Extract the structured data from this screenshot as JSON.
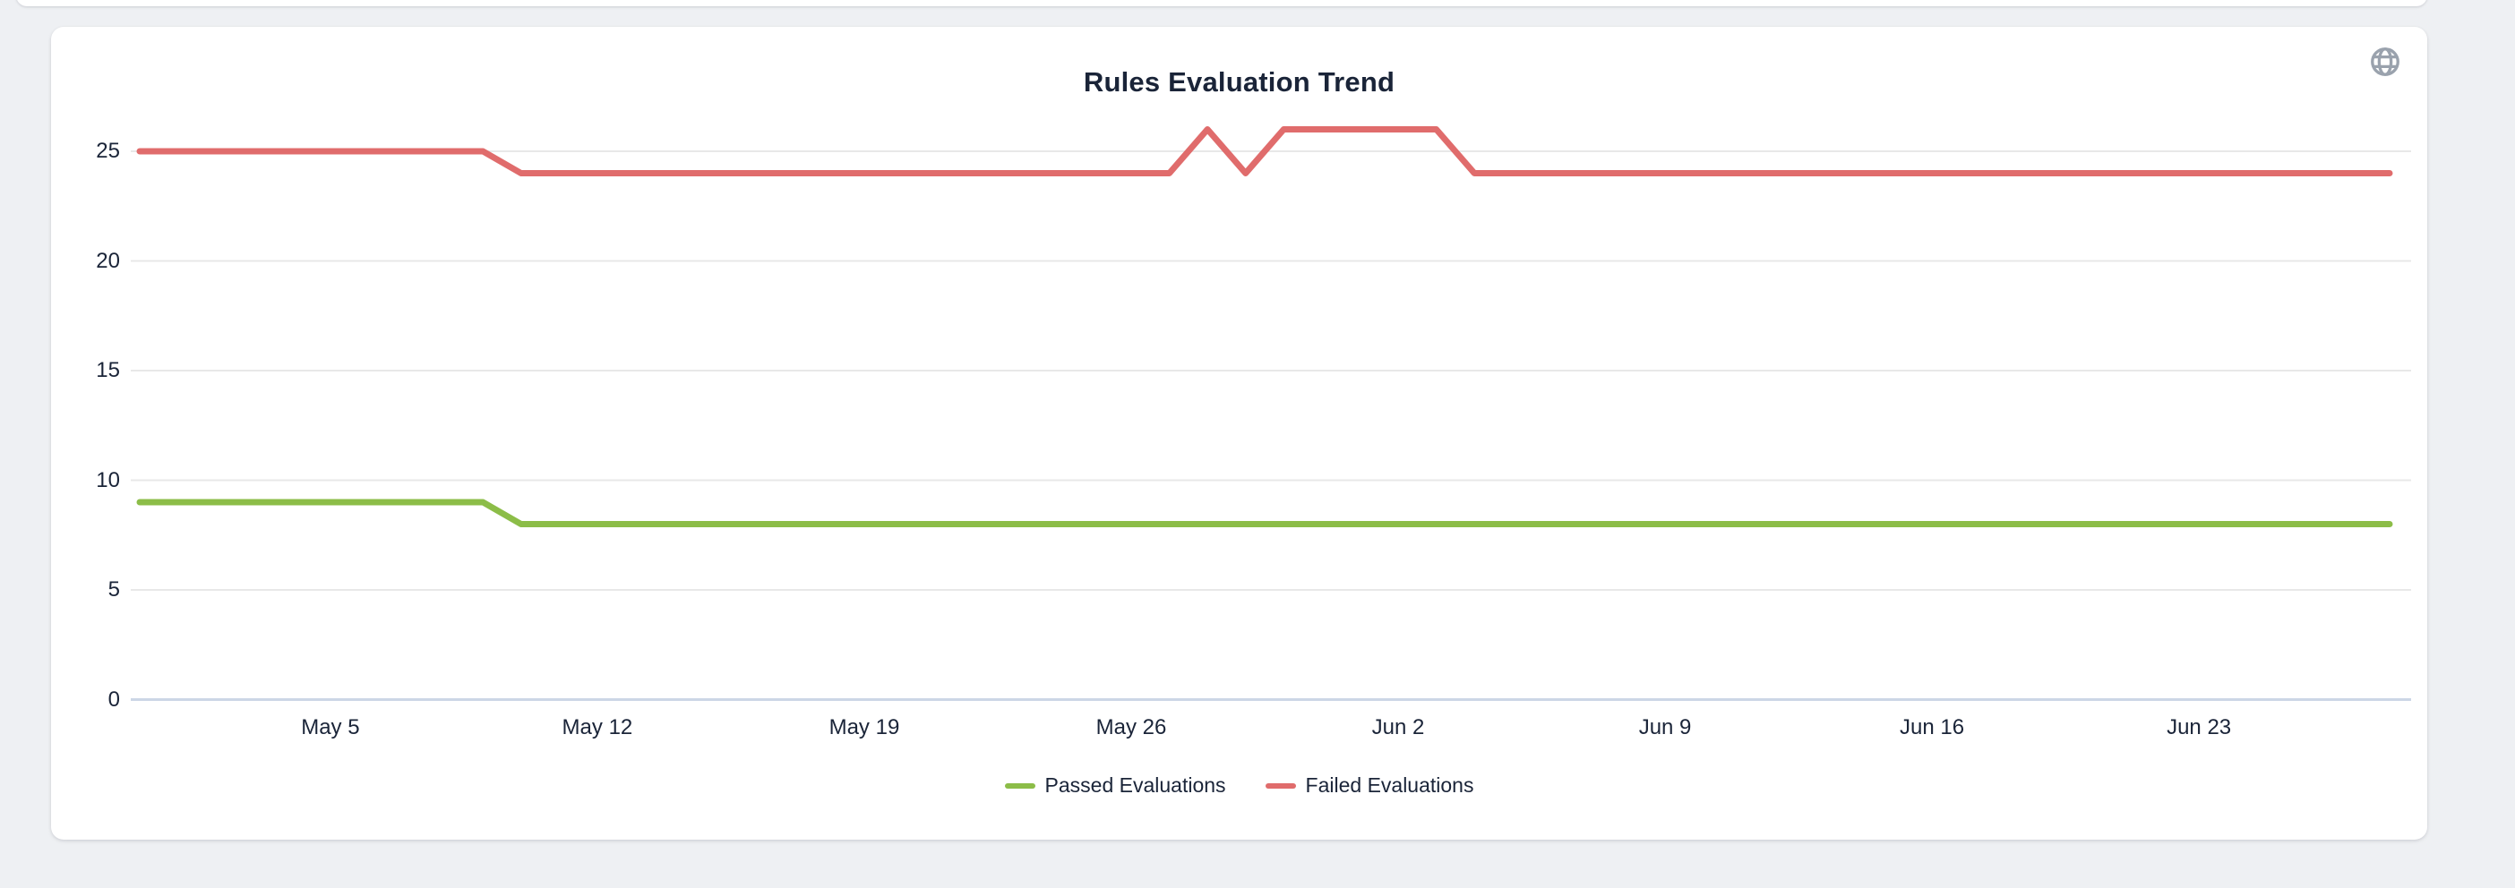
{
  "theme": {
    "page_background": "#eef0f3",
    "card_background": "#ffffff",
    "text_color": "#1a2438",
    "gridline_color": "#e8e8e8",
    "axis_line_color": "#ccd6e6",
    "globe_icon_color": "#9aa2ad"
  },
  "chart_card": {
    "title": "Rules Evaluation Trend",
    "toolbox_icon": "globe-icon"
  },
  "chart_data": {
    "type": "line",
    "title": "Rules Evaluation Trend",
    "xlabel": "",
    "ylabel": "",
    "grid": true,
    "legend_position": "bottom",
    "ylim": [
      0,
      27
    ],
    "yticks": [
      0,
      5,
      10,
      15,
      20,
      25
    ],
    "xticks": {
      "labels": [
        "May 5",
        "May 12",
        "May 19",
        "May 26",
        "Jun 2",
        "Jun 9",
        "Jun 16",
        "Jun 23"
      ],
      "indices": [
        5,
        12,
        19,
        26,
        33,
        40,
        47,
        54
      ]
    },
    "x": [
      "Apr 30",
      "May 1",
      "May 2",
      "May 3",
      "May 4",
      "May 5",
      "May 6",
      "May 7",
      "May 8",
      "May 9",
      "May 10",
      "May 11",
      "May 12",
      "May 13",
      "May 14",
      "May 15",
      "May 16",
      "May 17",
      "May 18",
      "May 19",
      "May 20",
      "May 21",
      "May 22",
      "May 23",
      "May 24",
      "May 25",
      "May 26",
      "May 27",
      "May 28",
      "May 29",
      "May 30",
      "May 31",
      "Jun 1",
      "Jun 2",
      "Jun 3",
      "Jun 4",
      "Jun 5",
      "Jun 6",
      "Jun 7",
      "Jun 8",
      "Jun 9",
      "Jun 10",
      "Jun 11",
      "Jun 12",
      "Jun 13",
      "Jun 14",
      "Jun 15",
      "Jun 16",
      "Jun 17",
      "Jun 18",
      "Jun 19",
      "Jun 20",
      "Jun 21",
      "Jun 22",
      "Jun 23",
      "Jun 24",
      "Jun 25",
      "Jun 26",
      "Jun 27",
      "Jun 28"
    ],
    "series": [
      {
        "name": "Passed Evaluations",
        "color": "#8cbd48",
        "values": [
          9,
          9,
          9,
          9,
          9,
          9,
          9,
          9,
          9,
          9,
          8,
          8,
          8,
          8,
          8,
          8,
          8,
          8,
          8,
          8,
          8,
          8,
          8,
          8,
          8,
          8,
          8,
          8,
          8,
          8,
          8,
          8,
          8,
          8,
          8,
          8,
          8,
          8,
          8,
          8,
          8,
          8,
          8,
          8,
          8,
          8,
          8,
          8,
          8,
          8,
          8,
          8,
          8,
          8,
          8,
          8,
          8,
          8,
          8,
          8
        ]
      },
      {
        "name": "Failed Evaluations",
        "color": "#e06c6c",
        "values": [
          25,
          25,
          25,
          25,
          25,
          25,
          25,
          25,
          25,
          25,
          24,
          24,
          24,
          24,
          24,
          24,
          24,
          24,
          24,
          24,
          24,
          24,
          24,
          24,
          24,
          24,
          24,
          24,
          26,
          24,
          26,
          26,
          26,
          26,
          26,
          24,
          24,
          24,
          24,
          24,
          24,
          24,
          24,
          24,
          24,
          24,
          24,
          24,
          24,
          24,
          24,
          24,
          24,
          24,
          24,
          24,
          24,
          24,
          24,
          24
        ]
      }
    ]
  }
}
